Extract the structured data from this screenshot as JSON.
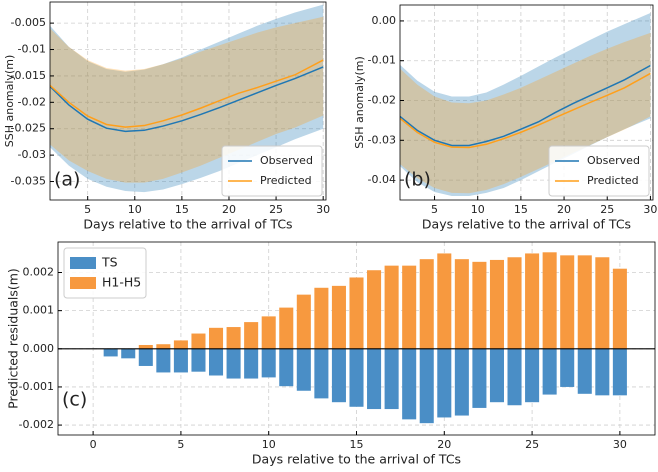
{
  "chart_data": [
    {
      "type": "line",
      "annotation": "(a)",
      "xlabel": "Days relative to the arrival of TCs",
      "ylabel": "SSH anomaly(m)",
      "x": [
        1,
        3,
        5,
        7,
        9,
        11,
        13,
        15,
        17,
        19,
        21,
        23,
        25,
        27,
        30
      ],
      "series": [
        {
          "name": "Observed",
          "color": "#1f77b4",
          "values": [
            -0.017,
            -0.0205,
            -0.0232,
            -0.0249,
            -0.0255,
            -0.0253,
            -0.0245,
            -0.0235,
            -0.0223,
            -0.021,
            -0.0196,
            -0.0182,
            -0.0168,
            -0.0155,
            -0.0133
          ],
          "upper": [
            -0.0055,
            -0.0095,
            -0.0122,
            -0.0137,
            -0.0142,
            -0.0138,
            -0.0128,
            -0.0115,
            -0.01,
            -0.0085,
            -0.007,
            -0.0055,
            -0.0042,
            -0.003,
            -0.0015
          ],
          "lower": [
            -0.0285,
            -0.032,
            -0.0345,
            -0.036,
            -0.0368,
            -0.037,
            -0.0365,
            -0.0355,
            -0.0343,
            -0.033,
            -0.0315,
            -0.03,
            -0.0285,
            -0.027,
            -0.025
          ]
        },
        {
          "name": "Predicted",
          "color": "#ff9f1a",
          "values": [
            -0.0168,
            -0.02,
            -0.0226,
            -0.0242,
            -0.0247,
            -0.0244,
            -0.0235,
            -0.0224,
            -0.0211,
            -0.0197,
            -0.0183,
            -0.0172,
            -0.016,
            -0.0148,
            -0.012
          ],
          "upper": [
            -0.006,
            -0.0095,
            -0.012,
            -0.0135,
            -0.014,
            -0.0137,
            -0.0128,
            -0.0117,
            -0.0104,
            -0.0092,
            -0.008,
            -0.0068,
            -0.0058,
            -0.005,
            -0.0038
          ],
          "lower": [
            -0.028,
            -0.031,
            -0.033,
            -0.0345,
            -0.0352,
            -0.0352,
            -0.0345,
            -0.0333,
            -0.032,
            -0.0305,
            -0.029,
            -0.0275,
            -0.026,
            -0.0248,
            -0.0225
          ]
        }
      ],
      "xlim": [
        1,
        30.3
      ],
      "xticks": [
        5,
        10,
        15,
        20,
        25,
        30
      ],
      "ylim": [
        -0.0385,
        -0.001
      ],
      "yticks": [
        -0.005,
        -0.01,
        -0.015,
        -0.02,
        -0.025,
        -0.03,
        -0.035
      ],
      "grid": true,
      "legend": "lower right"
    },
    {
      "type": "line",
      "annotation": "(b)",
      "xlabel": "Days relative to the arrival of TCs",
      "ylabel": "SSH anomaly(m)",
      "x": [
        1,
        3,
        5,
        7,
        9,
        11,
        13,
        15,
        17,
        19,
        21,
        23,
        25,
        27,
        30
      ],
      "series": [
        {
          "name": "Observed",
          "color": "#1f77b4",
          "values": [
            -0.024,
            -0.0275,
            -0.03,
            -0.0313,
            -0.0313,
            -0.0303,
            -0.029,
            -0.0272,
            -0.0254,
            -0.023,
            -0.0208,
            -0.0188,
            -0.0168,
            -0.0148,
            -0.0112
          ],
          "upper": [
            -0.011,
            -0.015,
            -0.0178,
            -0.019,
            -0.019,
            -0.018,
            -0.016,
            -0.0138,
            -0.0115,
            -0.0092,
            -0.007,
            -0.0048,
            -0.0027,
            -0.0008,
            0.002
          ],
          "lower": [
            -0.0365,
            -0.0405,
            -0.043,
            -0.044,
            -0.044,
            -0.0432,
            -0.042,
            -0.04,
            -0.0378,
            -0.0356,
            -0.0335,
            -0.0313,
            -0.0292,
            -0.0272,
            -0.0245
          ]
        },
        {
          "name": "Predicted",
          "color": "#ff9f1a",
          "values": [
            -0.0245,
            -0.028,
            -0.0305,
            -0.0317,
            -0.0318,
            -0.031,
            -0.0296,
            -0.028,
            -0.0262,
            -0.0243,
            -0.0224,
            -0.0205,
            -0.0187,
            -0.0168,
            -0.0132
          ],
          "upper": [
            -0.012,
            -0.016,
            -0.019,
            -0.0205,
            -0.0207,
            -0.02,
            -0.0185,
            -0.0168,
            -0.0148,
            -0.0128,
            -0.0108,
            -0.0088,
            -0.007,
            -0.0053,
            -0.003
          ],
          "lower": [
            -0.036,
            -0.0395,
            -0.042,
            -0.0432,
            -0.0433,
            -0.0425,
            -0.041,
            -0.0392,
            -0.0372,
            -0.0352,
            -0.0332,
            -0.0312,
            -0.0292,
            -0.0273,
            -0.024
          ]
        }
      ],
      "xlim": [
        1,
        30.3
      ],
      "xticks": [
        5,
        10,
        15,
        20,
        25,
        30
      ],
      "ylim": [
        -0.045,
        0.004
      ],
      "yticks": [
        {
          "value": 0,
          "label": "0.00"
        },
        -0.01,
        -0.02,
        -0.03,
        -0.04
      ],
      "grid": true,
      "legend": "lower right"
    },
    {
      "type": "bar",
      "annotation": "(c)",
      "xlabel": "Days relative to the arrival of TCs",
      "ylabel": "Predicted residuals(m)",
      "x": [
        1,
        2,
        3,
        4,
        5,
        6,
        7,
        8,
        9,
        10,
        11,
        12,
        13,
        14,
        15,
        16,
        17,
        18,
        19,
        20,
        21,
        22,
        23,
        24,
        25,
        26,
        27,
        28,
        29,
        30
      ],
      "series": [
        {
          "name": "TS",
          "color": "#4a8ec6",
          "values": [
            -0.0002,
            -0.00025,
            -0.00045,
            -0.00062,
            -0.00062,
            -0.0006,
            -0.0007,
            -0.00078,
            -0.00078,
            -0.00075,
            -0.00098,
            -0.0011,
            -0.0013,
            -0.0014,
            -0.00152,
            -0.00158,
            -0.00158,
            -0.00185,
            -0.00195,
            -0.0018,
            -0.00175,
            -0.00155,
            -0.0014,
            -0.00148,
            -0.0014,
            -0.0012,
            -0.001,
            -0.00118,
            -0.00122,
            -0.00122
          ]
        },
        {
          "name": "H1-H5",
          "color": "#f7993f",
          "values": [
            0,
            0,
            0.0001,
            0.00012,
            0.00022,
            0.0004,
            0.00055,
            0.00057,
            0.0007,
            0.00085,
            0.00108,
            0.00142,
            0.0016,
            0.00165,
            0.00187,
            0.00206,
            0.00218,
            0.00218,
            0.00235,
            0.0025,
            0.00235,
            0.00228,
            0.00233,
            0.0024,
            0.0025,
            0.00253,
            0.00245,
            0.00245,
            0.0024,
            0.0021
          ]
        }
      ],
      "xlim": [
        -2,
        32
      ],
      "xticks": [
        0,
        5,
        10,
        15,
        20,
        25,
        30
      ],
      "ylim": [
        -0.00226,
        0.0028
      ],
      "yticks": [
        0.002,
        0.001,
        {
          "value": 0,
          "label": "0.000"
        },
        -0.001,
        -0.002
      ],
      "grid": true,
      "legend": "upper left"
    }
  ]
}
